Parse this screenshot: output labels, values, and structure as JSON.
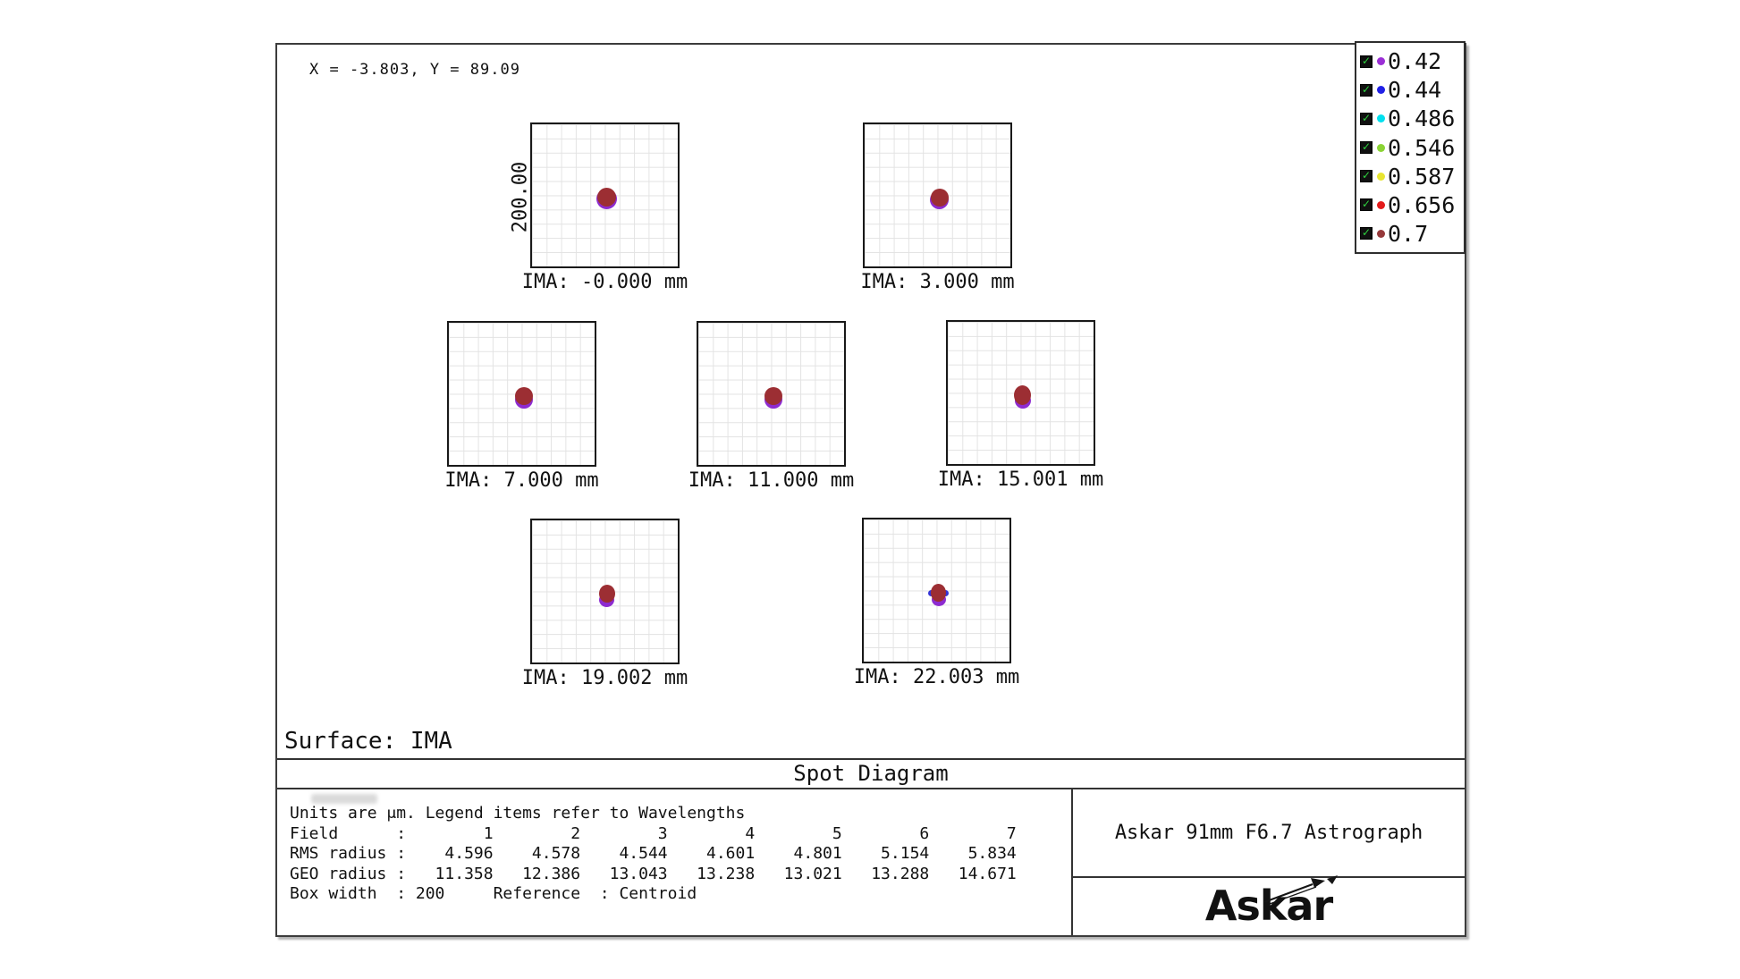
{
  "cursor_readout": "X = -3.803, Y = 89.09",
  "scale_label": "200.00",
  "surface_label": "Surface: IMA",
  "panel_title": "Spot Diagram",
  "legend": {
    "items": [
      {
        "label": "0.42",
        "color": "#9b2fd6"
      },
      {
        "label": "0.44",
        "color": "#2121e6"
      },
      {
        "label": "0.486",
        "color": "#00e0ef"
      },
      {
        "label": "0.546",
        "color": "#8bd435"
      },
      {
        "label": "0.587",
        "color": "#e8e531"
      },
      {
        "label": "0.656",
        "color": "#e31b1b"
      },
      {
        "label": "0.7",
        "color": "#96393b"
      }
    ],
    "check_glyph": "✓"
  },
  "footer": {
    "units_line": "Units are μm. Legend items refer to Wavelengths",
    "field_label": "Field",
    "rms_label": "RMS radius",
    "geo_label": "GEO radius",
    "box_width_label": "Box width",
    "box_width_value": "200",
    "reference_label": "Reference",
    "reference_value": "Centroid"
  },
  "branding": {
    "system_title": "Askar 91mm F6.7 Astrograph",
    "logo_text": "Askar"
  },
  "chart_data": {
    "type": "scatter",
    "title": "Spot Diagram",
    "surface": "IMA",
    "units": "μm",
    "reference": "Centroid",
    "box_width_um": 200,
    "scale_bar_um": "200.00",
    "wavelengths_um": [
      "0.42",
      "0.44",
      "0.486",
      "0.546",
      "0.587",
      "0.656",
      "0.7"
    ],
    "fields": [
      {
        "field": 1,
        "ima_label": "IMA: -0.000 mm",
        "rms_radius_um": 4.596,
        "geo_radius_um": 11.358
      },
      {
        "field": 2,
        "ima_label": "IMA: 3.000 mm",
        "rms_radius_um": 4.578,
        "geo_radius_um": 12.386
      },
      {
        "field": 3,
        "ima_label": "IMA: 7.000 mm",
        "rms_radius_um": 4.544,
        "geo_radius_um": 13.043
      },
      {
        "field": 4,
        "ima_label": "IMA: 11.000 mm",
        "rms_radius_um": 4.601,
        "geo_radius_um": 13.238
      },
      {
        "field": 5,
        "ima_label": "IMA: 15.001 mm",
        "rms_radius_um": 4.801,
        "geo_radius_um": 13.021
      },
      {
        "field": 6,
        "ima_label": "IMA: 19.002 mm",
        "rms_radius_um": 5.154,
        "geo_radius_um": 13.288
      },
      {
        "field": 7,
        "ima_label": "IMA: 22.003 mm",
        "rms_radius_um": 5.834,
        "geo_radius_um": 14.671
      }
    ],
    "spot_colors": {
      "wl_0_7": "#9c2e33",
      "wl_0_42": "#8d2bd0",
      "wl_0_44": "#3434d6"
    },
    "grid_divisions": 10,
    "legend_position": "top-right"
  }
}
